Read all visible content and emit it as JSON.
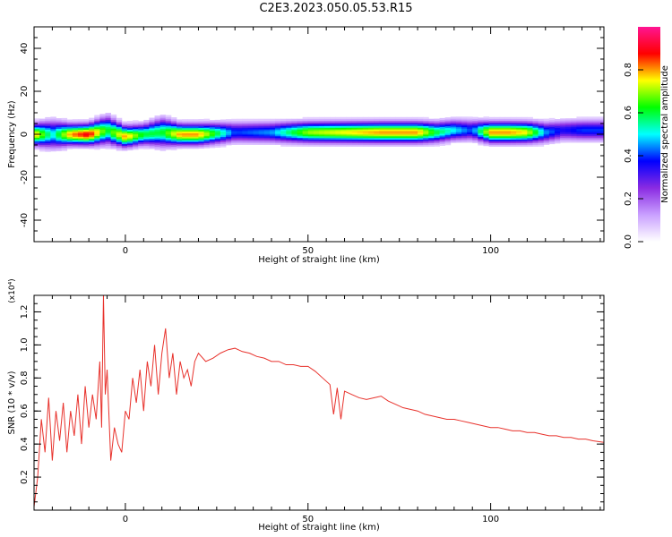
{
  "title": "C2E3.2023.050.05.53.R15",
  "colorbar": {
    "label": "Normalized spectral amplitude",
    "ticks": [
      0.0,
      0.2,
      0.4,
      0.6,
      0.8
    ],
    "range": [
      0.0,
      1.0
    ],
    "colors": [
      "#ffffff",
      "#c9a0ff",
      "#8a2be2",
      "#0000ff",
      "#00ffff",
      "#00ff00",
      "#ffff00",
      "#ff0000",
      "#ff1493"
    ]
  },
  "chart_data": [
    {
      "type": "heatmap",
      "xlabel": "Height of straight line (km)",
      "ylabel": "Frequency (Hz)",
      "xlim": [
        -25,
        131
      ],
      "ylim": [
        -50,
        50
      ],
      "xticks": [
        0,
        50,
        100
      ],
      "yticks": [
        40,
        20,
        0,
        -20,
        -40
      ],
      "grid": false,
      "ridge": {
        "x": [
          -25,
          -20,
          -15,
          -10,
          -5,
          0,
          5,
          10,
          15,
          20,
          30,
          40,
          50,
          60,
          70,
          80,
          85,
          90,
          95,
          100,
          105,
          110,
          115,
          120,
          125,
          131
        ],
        "center_hz": [
          0,
          0,
          0,
          0,
          2,
          -1,
          0,
          1,
          0,
          0,
          1,
          1,
          1,
          1,
          1,
          1,
          1,
          2,
          2,
          1,
          1,
          1,
          1,
          2,
          2,
          2
        ],
        "amplitude": [
          0.8,
          0.5,
          0.8,
          0.9,
          0.6,
          0.8,
          0.6,
          0.6,
          0.8,
          0.8,
          0.4,
          0.45,
          0.7,
          0.75,
          0.8,
          0.8,
          0.6,
          0.5,
          0.4,
          0.8,
          0.8,
          0.75,
          0.45,
          0.35,
          0.4,
          0.4
        ],
        "halfwidth_hz": [
          3,
          4,
          3,
          3,
          4,
          3,
          3,
          4,
          3,
          3,
          3,
          3,
          3,
          3,
          3,
          3,
          3,
          3,
          3,
          3,
          3,
          3,
          3,
          3,
          3,
          3
        ]
      }
    },
    {
      "type": "line",
      "xlabel": "Height of straight line (km)",
      "ylabel": "SNR (10 * v/v)",
      "yscale_label": "(x10⁴)",
      "xlim": [
        -25,
        131
      ],
      "ylim": [
        0,
        1.3
      ],
      "xticks": [
        0,
        50,
        100
      ],
      "yticks": [
        0.2,
        0.4,
        0.6,
        0.8,
        1.0,
        1.2
      ],
      "grid": false,
      "color": "#e8322c",
      "series": [
        {
          "x": [
            -25,
            -24,
            -23,
            -22,
            -21,
            -20,
            -19,
            -18,
            -17,
            -16,
            -15,
            -14,
            -13,
            -12,
            -11,
            -10,
            -9,
            -8,
            -7,
            -6.5,
            -6,
            -5.5,
            -5,
            -4,
            -3,
            -2,
            -1,
            0,
            1,
            2,
            3,
            4,
            5,
            6,
            7,
            8,
            9,
            10,
            11,
            12,
            13,
            14,
            15,
            16,
            17,
            18,
            19,
            20,
            22,
            24,
            26,
            28,
            30,
            32,
            34,
            36,
            38,
            40,
            42,
            44,
            46,
            48,
            50,
            52,
            54,
            56,
            57,
            58,
            59,
            60,
            62,
            64,
            66,
            68,
            70,
            72,
            74,
            76,
            78,
            80,
            82,
            84,
            86,
            88,
            90,
            92,
            94,
            96,
            98,
            100,
            102,
            104,
            106,
            108,
            110,
            112,
            114,
            116,
            118,
            120,
            122,
            124,
            126,
            128,
            131
          ],
          "values": [
            0.02,
            0.2,
            0.55,
            0.35,
            0.68,
            0.3,
            0.6,
            0.42,
            0.65,
            0.35,
            0.6,
            0.45,
            0.7,
            0.4,
            0.75,
            0.5,
            0.7,
            0.55,
            0.9,
            0.5,
            1.3,
            0.7,
            0.85,
            0.3,
            0.5,
            0.4,
            0.35,
            0.6,
            0.55,
            0.8,
            0.65,
            0.85,
            0.6,
            0.9,
            0.75,
            1.0,
            0.7,
            0.95,
            1.1,
            0.8,
            0.95,
            0.7,
            0.9,
            0.8,
            0.85,
            0.75,
            0.9,
            0.95,
            0.9,
            0.92,
            0.95,
            0.97,
            0.98,
            0.96,
            0.95,
            0.93,
            0.92,
            0.9,
            0.9,
            0.88,
            0.88,
            0.87,
            0.87,
            0.84,
            0.8,
            0.76,
            0.58,
            0.74,
            0.55,
            0.72,
            0.7,
            0.68,
            0.67,
            0.68,
            0.69,
            0.66,
            0.64,
            0.62,
            0.61,
            0.6,
            0.58,
            0.57,
            0.56,
            0.55,
            0.55,
            0.54,
            0.53,
            0.52,
            0.51,
            0.5,
            0.5,
            0.49,
            0.48,
            0.48,
            0.47,
            0.47,
            0.46,
            0.45,
            0.45,
            0.44,
            0.44,
            0.43,
            0.43,
            0.42,
            0.41
          ]
        }
      ]
    }
  ]
}
